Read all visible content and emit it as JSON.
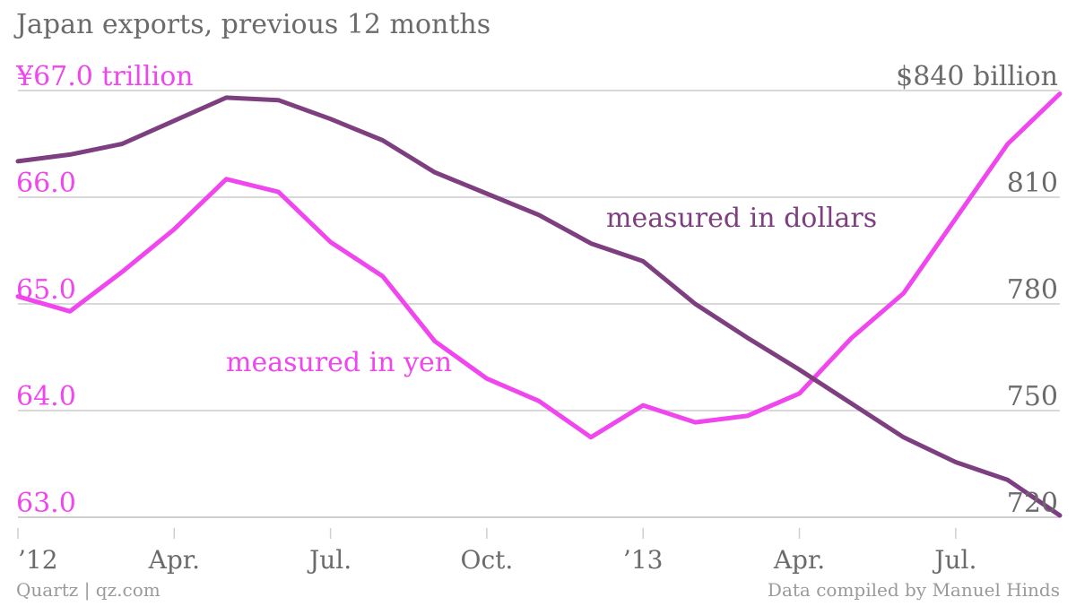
{
  "title": "Japan exports, previous 12 months",
  "source": "Quartz | qz.com",
  "credit": "Data compiled by Manuel Hinds",
  "colors": {
    "yen": "#f046ee",
    "dollars": "#7d3f7f",
    "grid": "#d9d9d9",
    "axis_text_right": "#6b6b6b"
  },
  "chart_data": {
    "type": "line",
    "x": [
      "Jan 2012",
      "Feb 2012",
      "Mar 2012",
      "Apr 2012",
      "May 2012",
      "Jun 2012",
      "Jul 2012",
      "Aug 2012",
      "Sep 2012",
      "Oct 2012",
      "Nov 2012",
      "Dec 2012",
      "Jan 2013",
      "Feb 2013",
      "Mar 2013",
      "Apr 2013",
      "May 2013",
      "Jun 2013",
      "Jul 2013",
      "Aug 2013",
      "Sep 2013"
    ],
    "x_tick_labels": [
      "’12",
      "Apr.",
      "Jul.",
      "Oct.",
      "’13",
      "Apr.",
      "Jul."
    ],
    "x_tick_positions": [
      "Jan 2012",
      "Apr 2012",
      "Jul 2012",
      "Oct 2012",
      "Jan 2013",
      "Apr 2013",
      "Jul 2013"
    ],
    "series": [
      {
        "name": "measured in yen",
        "axis": "left",
        "unit": "¥ trillion",
        "values": [
          65.07,
          64.93,
          65.3,
          65.7,
          66.17,
          66.05,
          65.58,
          65.26,
          64.65,
          64.3,
          64.09,
          63.75,
          64.05,
          63.89,
          63.95,
          64.16,
          64.68,
          65.1,
          65.8,
          66.5,
          66.97
        ]
      },
      {
        "name": "measured in dollars",
        "axis": "right",
        "unit": "$ billion",
        "values": [
          820.1,
          822.0,
          825.0,
          831.5,
          838.0,
          837.3,
          832.0,
          826.0,
          817.0,
          811.0,
          805.0,
          797.0,
          792.0,
          780.0,
          770.5,
          761.5,
          752.0,
          742.5,
          735.5,
          730.5,
          720.5
        ]
      }
    ],
    "y_left": {
      "ticks": [
        63.0,
        64.0,
        65.0,
        66.0,
        67.0
      ],
      "tick_labels": [
        "63.0",
        "64.0",
        "65.0",
        "66.0",
        "¥67.0 trillion"
      ],
      "range": [
        63.0,
        67.0
      ]
    },
    "y_right": {
      "ticks": [
        720,
        750,
        780,
        810,
        840
      ],
      "tick_labels": [
        "720",
        "750",
        "780",
        "810",
        "$840 billion"
      ],
      "range": [
        720,
        840
      ]
    },
    "annotations": [
      {
        "text": "measured in dollars",
        "series": "measured in dollars"
      },
      {
        "text": "measured in yen",
        "series": "measured in yen"
      }
    ],
    "grid": true
  }
}
